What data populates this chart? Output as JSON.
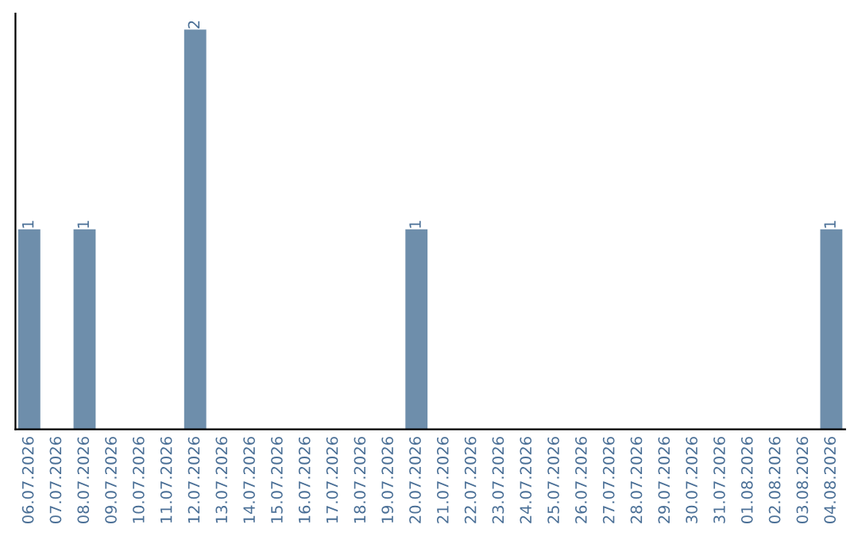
{
  "chart_data": {
    "type": "bar",
    "categories": [
      "06.07.2026",
      "07.07.2026",
      "08.07.2026",
      "09.07.2026",
      "10.07.2026",
      "11.07.2026",
      "12.07.2026",
      "13.07.2026",
      "14.07.2026",
      "15.07.2026",
      "16.07.2026",
      "17.07.2026",
      "18.07.2026",
      "19.07.2026",
      "20.07.2026",
      "21.07.2026",
      "22.07.2026",
      "23.07.2026",
      "24.07.2026",
      "25.07.2026",
      "26.07.2026",
      "27.07.2026",
      "28.07.2026",
      "29.07.2026",
      "30.07.2026",
      "31.07.2026",
      "01.08.2026",
      "02.08.2026",
      "03.08.2026",
      "04.08.2026"
    ],
    "values": [
      1,
      0,
      1,
      0,
      0,
      0,
      2,
      0,
      0,
      0,
      0,
      0,
      0,
      0,
      1,
      0,
      0,
      0,
      0,
      0,
      0,
      0,
      0,
      0,
      0,
      0,
      0,
      0,
      0,
      1
    ],
    "value_labels": [
      "1",
      null,
      "1",
      null,
      null,
      null,
      "2",
      null,
      null,
      null,
      null,
      null,
      null,
      null,
      "1",
      null,
      null,
      null,
      null,
      null,
      null,
      null,
      null,
      null,
      null,
      null,
      null,
      null,
      null,
      "1"
    ],
    "color": "#6e8eab",
    "tick_labels": "x",
    "grid": false
  }
}
